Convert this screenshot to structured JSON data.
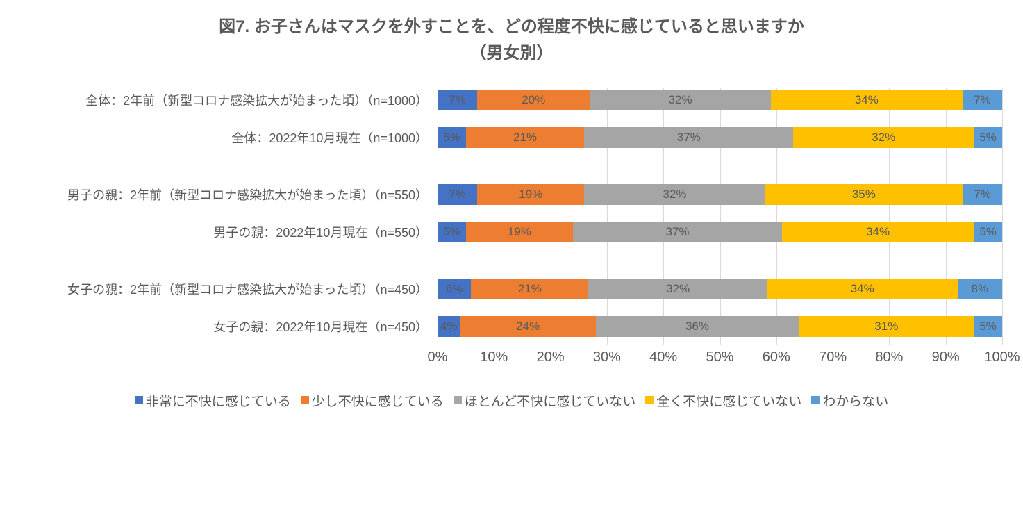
{
  "chart": {
    "type": "stacked-bar-horizontal",
    "title_line1": "図7. お子さんはマスクを外すことを、どの程度不快に感じていると思いますか",
    "title_line2": "（男女別）",
    "title_color": "#595959",
    "title_fontsize": 24,
    "background_color": "#ffffff",
    "xlim": [
      0,
      100
    ],
    "xtick_step": 10,
    "xticks": [
      "0%",
      "10%",
      "20%",
      "30%",
      "40%",
      "50%",
      "60%",
      "70%",
      "80%",
      "90%",
      "100%"
    ],
    "grid_color": "#d9d9d9",
    "label_fontsize": 18,
    "axis_fontsize": 20,
    "datalabel_fontsize": 17,
    "series": [
      {
        "name": "非常に不快に感じている",
        "color": "#4472c4"
      },
      {
        "name": "少し不快に感じている",
        "color": "#ed7d31"
      },
      {
        "name": "ほとんど不快に感じていない",
        "color": "#a5a5a5"
      },
      {
        "name": "全く不快に感じていない",
        "color": "#ffc000"
      },
      {
        "name": "わからない",
        "color": "#5b9bd5"
      }
    ],
    "groups": [
      {
        "rows": [
          {
            "label": "全体：2年前（新型コロナ感染拡大が始まった頃）（n=1000）",
            "values": [
              7,
              20,
              32,
              34,
              7
            ]
          },
          {
            "label": "全体：2022年10月現在（n=1000）",
            "values": [
              5,
              21,
              37,
              32,
              5
            ]
          }
        ]
      },
      {
        "rows": [
          {
            "label": "男子の親：2年前（新型コロナ感染拡大が始まった頃）（n=550）",
            "values": [
              7,
              19,
              32,
              35,
              7
            ]
          },
          {
            "label": "男子の親：2022年10月現在（n=550）",
            "values": [
              5,
              19,
              37,
              34,
              5
            ]
          }
        ]
      },
      {
        "rows": [
          {
            "label": "女子の親：2年前（新型コロナ感染拡大が始まった頃）（n=450）",
            "values": [
              6,
              21,
              32,
              34,
              8
            ]
          },
          {
            "label": "女子の親：2022年10月現在（n=450）",
            "values": [
              4,
              24,
              36,
              31,
              5
            ]
          }
        ]
      }
    ]
  }
}
